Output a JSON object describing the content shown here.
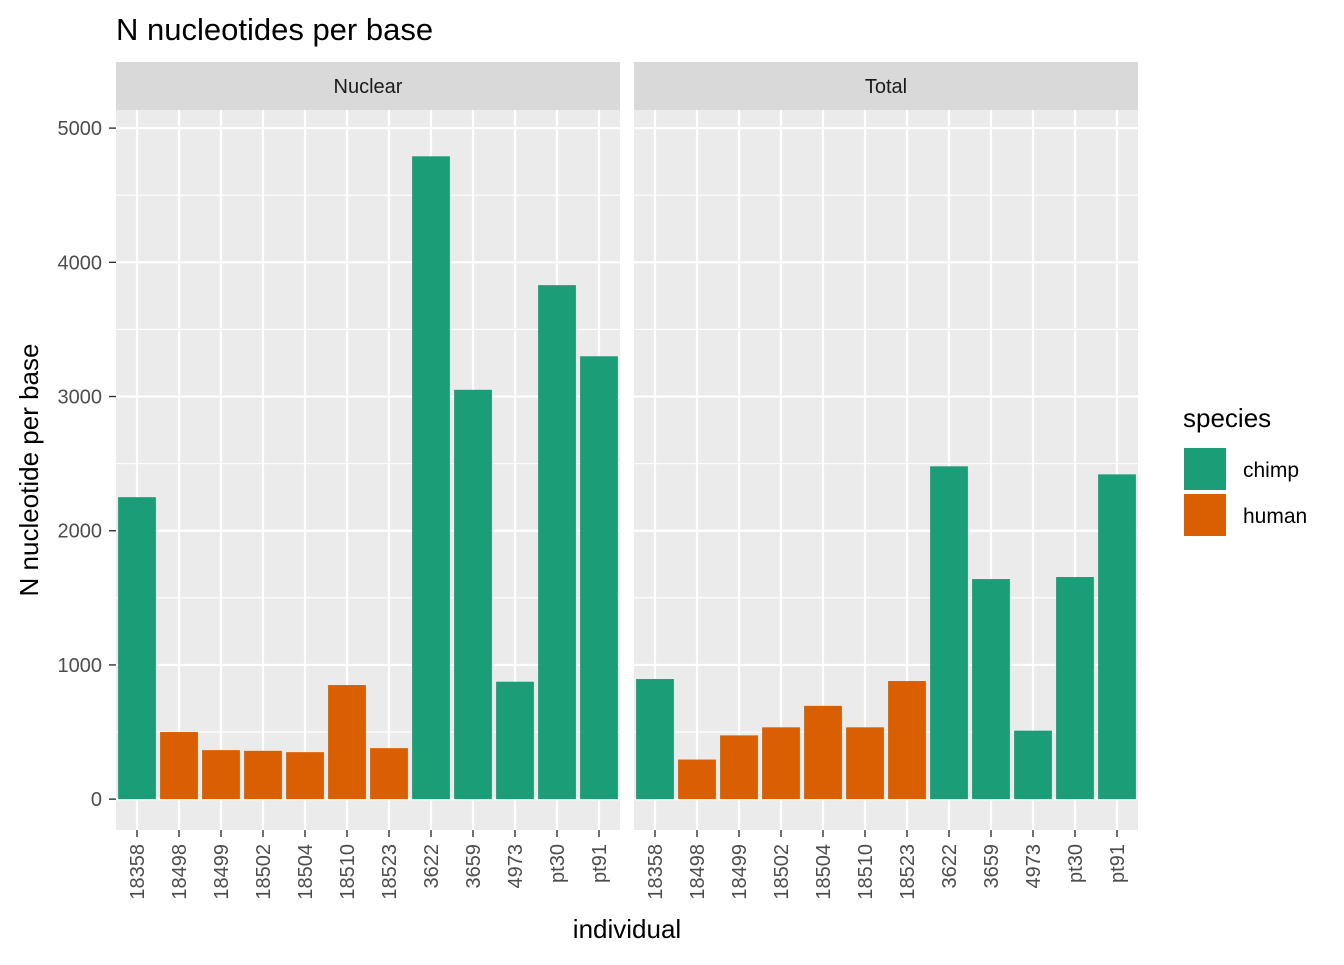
{
  "chart_data": {
    "type": "bar",
    "title": "N nucleotides per base",
    "xlabel": "individual",
    "ylabel": "N nucleotide per base",
    "ylim": [
      -230,
      5135
    ],
    "yticks": [
      0,
      1000,
      2000,
      3000,
      4000,
      5000
    ],
    "grid": true,
    "legend": {
      "title": "species",
      "position": "right",
      "items": [
        {
          "label": "chimp",
          "color": "#1B9E77"
        },
        {
          "label": "human",
          "color": "#D95F02"
        }
      ]
    },
    "categories": [
      "18358",
      "18498",
      "18499",
      "18502",
      "18504",
      "18510",
      "18523",
      "3622",
      "3659",
      "4973",
      "pt30",
      "pt91"
    ],
    "species": [
      "chimp",
      "human",
      "human",
      "human",
      "human",
      "human",
      "human",
      "chimp",
      "chimp",
      "chimp",
      "chimp",
      "chimp"
    ],
    "panels": [
      {
        "name": "Nuclear",
        "values": [
          2250,
          500,
          365,
          360,
          350,
          850,
          380,
          4790,
          3050,
          875,
          3830,
          3300
        ]
      },
      {
        "name": "Total",
        "values": [
          895,
          295,
          475,
          535,
          695,
          535,
          880,
          2480,
          1640,
          510,
          1655,
          2420
        ]
      }
    ]
  }
}
